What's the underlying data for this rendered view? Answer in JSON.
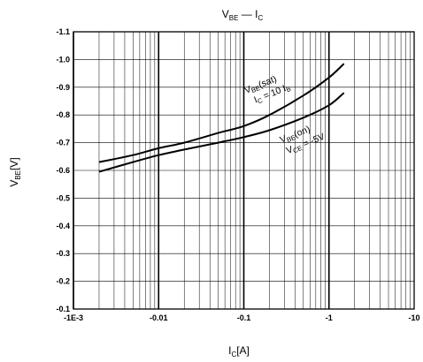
{
  "chart_data": {
    "type": "line",
    "title": {
      "main": "V",
      "sub1": "BE",
      "dash": " — ",
      "main2": "I",
      "sub2": "C"
    },
    "xlabel": {
      "main": "I",
      "sub": "C",
      "rest": "[A]"
    },
    "ylabel": {
      "main": "V",
      "sub": "BE",
      "rest": "[V]"
    },
    "x_scale": "log",
    "xlim": [
      -0.001,
      -10
    ],
    "ylim": [
      -0.1,
      -1.1
    ],
    "y_scale": "linear",
    "grid": true,
    "x_ticks": [
      {
        "value": 0.001,
        "label": "-1E-3"
      },
      {
        "value": 0.01,
        "label": "-0.01"
      },
      {
        "value": 0.1,
        "label": "-0.1"
      },
      {
        "value": 1,
        "label": "-1"
      },
      {
        "value": 10,
        "label": "-10"
      }
    ],
    "y_ticks": [
      {
        "value": -1.1,
        "label": "-1.1"
      },
      {
        "value": -1.0,
        "label": "-1.0"
      },
      {
        "value": -0.9,
        "label": "-0.9"
      },
      {
        "value": -0.8,
        "label": "-0.8"
      },
      {
        "value": -0.7,
        "label": "-0.7"
      },
      {
        "value": -0.6,
        "label": "-0.6"
      },
      {
        "value": -0.5,
        "label": "-0.5"
      },
      {
        "value": -0.4,
        "label": "-0.4"
      },
      {
        "value": -0.3,
        "label": "-0.3"
      },
      {
        "value": -0.2,
        "label": "-0.2"
      },
      {
        "value": -0.1,
        "label": "-0.1"
      }
    ],
    "series": [
      {
        "annotation": [
          "V_BE(sat)",
          "I_C = 10 I_B"
        ],
        "points": [
          {
            "x": -0.002,
            "y": -0.63
          },
          {
            "x": -0.005,
            "y": -0.655
          },
          {
            "x": -0.01,
            "y": -0.68
          },
          {
            "x": -0.02,
            "y": -0.7
          },
          {
            "x": -0.05,
            "y": -0.735
          },
          {
            "x": -0.1,
            "y": -0.76
          },
          {
            "x": -0.2,
            "y": -0.8
          },
          {
            "x": -0.5,
            "y": -0.87
          },
          {
            "x": -1,
            "y": -0.935
          },
          {
            "x": -1.5,
            "y": -0.985
          }
        ]
      },
      {
        "annotation": [
          "V_BE(on)",
          "V_CE = -5V"
        ],
        "points": [
          {
            "x": -0.002,
            "y": -0.595
          },
          {
            "x": -0.005,
            "y": -0.63
          },
          {
            "x": -0.01,
            "y": -0.655
          },
          {
            "x": -0.02,
            "y": -0.675
          },
          {
            "x": -0.05,
            "y": -0.7
          },
          {
            "x": -0.1,
            "y": -0.72
          },
          {
            "x": -0.2,
            "y": -0.745
          },
          {
            "x": -0.5,
            "y": -0.79
          },
          {
            "x": -1,
            "y": -0.835
          },
          {
            "x": -1.5,
            "y": -0.88
          }
        ]
      }
    ],
    "annotations": {
      "sat": {
        "main": "V",
        "sub": "BE",
        "rest": "(sat)",
        "l2main": "I",
        "l2sub": "C",
        "l2mid": " = 10 I",
        "l2sub2": "B"
      },
      "on": {
        "main": "V",
        "sub": "BE",
        "rest": "(on)",
        "l2main": "V",
        "l2sub": "CE",
        "l2rest": " = -5V"
      }
    }
  }
}
